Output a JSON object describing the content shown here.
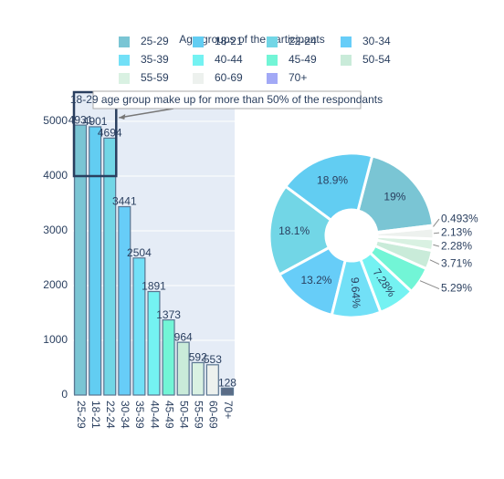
{
  "chart_data": [
    {
      "type": "bar",
      "title": "Age groups of the participants",
      "categories": [
        "25-29",
        "18-21",
        "22-24",
        "30-34",
        "35-39",
        "40-44",
        "45-49",
        "50-54",
        "55-59",
        "60-69",
        "70+"
      ],
      "values": [
        4931,
        4901,
        4694,
        3441,
        2504,
        1891,
        1373,
        964,
        592,
        553,
        128
      ],
      "colors": [
        "#7ac5d4",
        "#62cdf2",
        "#72d6e6",
        "#67cdf8",
        "#72e0f7",
        "#74f2f2",
        "#72f5d6",
        "#c9ebd9",
        "#d9f1e2",
        "#edf1ee",
        "#5b6c86"
      ],
      "ylim": [
        0,
        5550
      ],
      "yticks": [
        0,
        1000,
        2000,
        3000,
        4000,
        5000
      ],
      "grid": true,
      "annotation": "18-29 age group make up for more than 50% of the respondants"
    },
    {
      "type": "pie",
      "direction": "counterclockwise",
      "legend": "top",
      "labels": [
        "25-29",
        "18-21",
        "22-24",
        "30-34",
        "35-39",
        "40-44",
        "45-49",
        "50-54",
        "55-59",
        "60-69",
        "70+"
      ],
      "values": [
        19,
        18.9,
        18.1,
        13.2,
        9.64,
        7.28,
        5.29,
        3.71,
        2.28,
        2.13,
        0.493
      ],
      "value_labels": [
        "19%",
        "18.9%",
        "18.1%",
        "13.2%",
        "9.64%",
        "7.28%",
        "5.29%",
        "3.71%",
        "2.28%",
        "2.13%",
        "0.493%"
      ],
      "colors": [
        "#7ac5d4",
        "#62cdf2",
        "#72d6e6",
        "#67cdf8",
        "#72e0f7",
        "#74f2f2",
        "#72f5d6",
        "#c9ebd9",
        "#d9f1e2",
        "#edf1ee",
        "#a2a9f6"
      ]
    }
  ]
}
